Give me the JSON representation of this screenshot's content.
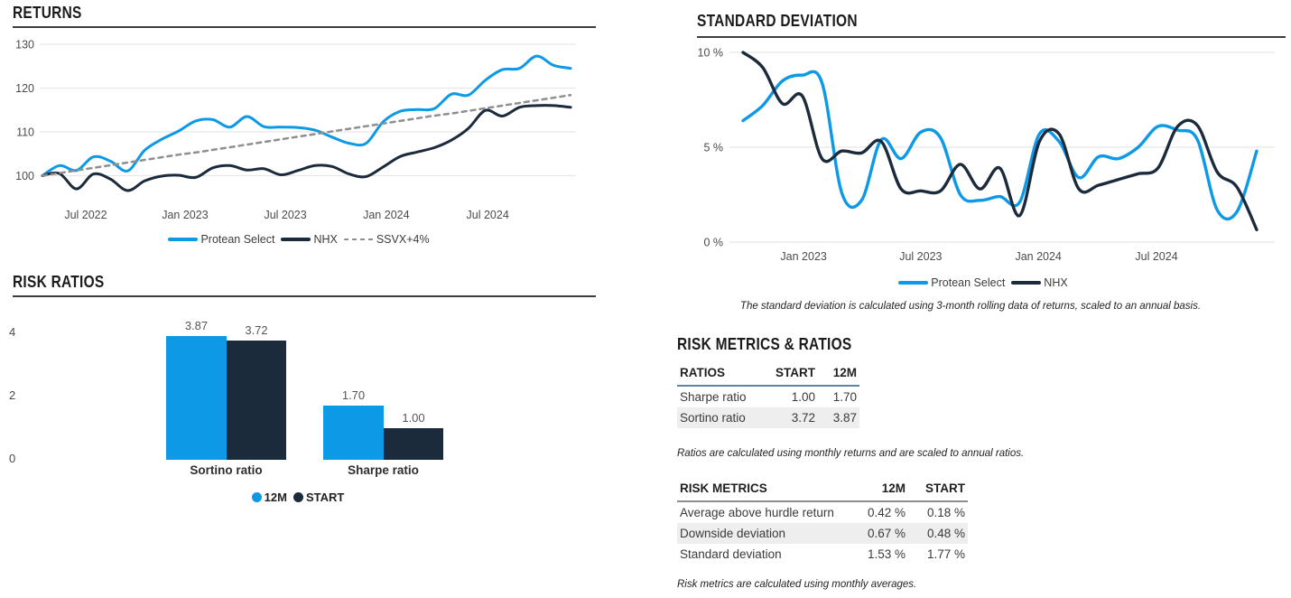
{
  "colors": {
    "accent_blue": "#0d99e6",
    "navy": "#1c2b3c",
    "dash_gray": "#8f8f8f",
    "grid": "#e8e8e8",
    "rule": "#3d3d3d",
    "stripe": "#eeeeee",
    "table1_underline": "#5d87a6",
    "table2_underline": "#8f8f8f"
  },
  "panels": {
    "returns": {
      "title": "RETURNS"
    },
    "risk_ratios": {
      "title": "RISK RATIOS"
    },
    "std_dev": {
      "title": "STANDARD DEVIATION",
      "footnote": "The standard deviation is calculated using 3-month rolling data of returns, scaled to an annual basis."
    },
    "risk_metrics": {
      "title": "RISK METRICS & RATIOS",
      "ratios_footnote": "Ratios are calculated using monthly returns and are scaled to annual ratios.",
      "metrics_footnote": "Risk metrics are calculated using monthly averages."
    }
  },
  "chart_data": [
    {
      "id": "returns",
      "type": "line",
      "title": "RETURNS",
      "x_range": [
        "May 2022",
        "Dec 2024"
      ],
      "x_ticks": [
        {
          "label": "Jul 2022",
          "pos": 0.082
        },
        {
          "label": "Jan 2023",
          "pos": 0.27
        },
        {
          "label": "Jul 2023",
          "pos": 0.46
        },
        {
          "label": "Jan 2024",
          "pos": 0.651
        },
        {
          "label": "Jul 2024",
          "pos": 0.843
        }
      ],
      "y_ticks": [
        {
          "label": "100",
          "value": 100
        },
        {
          "label": "110",
          "value": 110
        },
        {
          "label": "120",
          "value": 120
        },
        {
          "label": "130",
          "value": 130
        }
      ],
      "ylim": [
        94,
        131
      ],
      "grid": true,
      "legend_position": "bottom",
      "series": [
        {
          "name": "Protean Select",
          "color": "#0d99e6",
          "dash": false,
          "values": [
            100,
            102.3,
            101.2,
            104.3,
            103.3,
            101.1,
            105.8,
            108.3,
            110.2,
            112.5,
            112.8,
            111.1,
            113.5,
            111.2,
            111.1,
            111.0,
            110.4,
            108.8,
            107.4,
            107.4,
            112.3,
            114.7,
            115.1,
            115.3,
            118.6,
            118.4,
            121.8,
            124.2,
            124.5,
            127.3,
            125.2,
            124.5
          ]
        },
        {
          "name": "NHX",
          "color": "#1c2b3c",
          "dash": false,
          "values": [
            100,
            100.5,
            97.0,
            100.4,
            99.2,
            96.6,
            98.8,
            99.9,
            100.1,
            99.6,
            101.8,
            102.3,
            101.3,
            101.6,
            100.2,
            101.2,
            102.3,
            102.1,
            100.4,
            99.8,
            102.0,
            104.4,
            105.4,
            106.4,
            108.1,
            110.8,
            114.9,
            113.6,
            115.6,
            116.0,
            116.0,
            115.6
          ]
        },
        {
          "name": "SSVX+4%",
          "color": "#8f8f8f",
          "dash": true,
          "values": [
            100,
            100.6,
            101.2,
            101.8,
            102.4,
            103.0,
            103.6,
            104.2,
            104.8,
            105.3,
            105.9,
            106.5,
            107.1,
            107.7,
            108.3,
            108.9,
            109.5,
            110.1,
            110.7,
            111.3,
            111.9,
            112.5,
            113.1,
            113.7,
            114.2,
            114.8,
            115.4,
            116.0,
            116.6,
            117.2,
            117.8,
            118.4
          ]
        }
      ]
    },
    {
      "id": "std-dev",
      "type": "line",
      "title": "STANDARD DEVIATION",
      "x_range": [
        "Oct 2022",
        "Dec 2024"
      ],
      "x_ticks": [
        {
          "label": "Jan 2023",
          "pos": 0.118
        },
        {
          "label": "Jul 2023",
          "pos": 0.346
        },
        {
          "label": "Jan 2024",
          "pos": 0.575
        },
        {
          "label": "Jul 2024",
          "pos": 0.805
        }
      ],
      "y_ticks": [
        {
          "label": "0 %",
          "value": 0
        },
        {
          "label": "5 %",
          "value": 5
        },
        {
          "label": "10 %",
          "value": 10
        }
      ],
      "ylim": [
        0,
        10
      ],
      "grid": true,
      "legend_position": "bottom",
      "series": [
        {
          "name": "Protean Select",
          "color": "#0d99e6",
          "dash": false,
          "values": [
            6.4,
            7.2,
            8.5,
            8.8,
            8.4,
            2.6,
            2.2,
            5.4,
            4.4,
            5.8,
            5.5,
            2.5,
            2.2,
            2.4,
            2.1,
            5.7,
            5.3,
            3.4,
            4.5,
            4.4,
            5.0,
            6.1,
            5.9,
            5.4,
            1.7,
            1.6,
            4.8
          ]
        },
        {
          "name": "NHX",
          "color": "#1c2b3c",
          "dash": false,
          "values": [
            10.0,
            9.2,
            7.3,
            7.7,
            4.4,
            4.8,
            4.7,
            5.3,
            2.8,
            2.7,
            2.7,
            4.1,
            2.8,
            3.9,
            1.4,
            5.3,
            5.7,
            2.8,
            3.0,
            3.3,
            3.6,
            3.9,
            6.1,
            6.15,
            3.7,
            2.9,
            0.65
          ]
        }
      ]
    },
    {
      "id": "risk-ratios",
      "type": "bar",
      "title": "RISK RATIOS",
      "categories": [
        "Sortino ratio",
        "Sharpe ratio"
      ],
      "series": [
        {
          "name": "12M",
          "color": "#0d99e6",
          "values": [
            3.87,
            1.7
          ]
        },
        {
          "name": "START",
          "color": "#1c2b3c",
          "values": [
            3.72,
            1.0
          ]
        }
      ],
      "value_labels": [
        "3.87",
        "3.72",
        "1.70",
        "1.00"
      ],
      "y_ticks": [
        "4",
        "2",
        "0"
      ],
      "ylim": [
        0,
        4
      ],
      "legend_position": "bottom"
    }
  ],
  "tables": {
    "ratios": {
      "headers": [
        "RATIOS",
        "START",
        "12M"
      ],
      "rows": [
        {
          "name": "Sharpe ratio",
          "start": "1.00",
          "m12": "1.70"
        },
        {
          "name": "Sortino ratio",
          "start": "3.72",
          "m12": "3.87"
        }
      ]
    },
    "risk_metrics": {
      "headers": [
        "RISK METRICS",
        "12M",
        "START"
      ],
      "rows": [
        {
          "name": "Average above hurdle return",
          "m12": "0.42 %",
          "start": "0.18 %"
        },
        {
          "name": "Downside deviation",
          "m12": "0.67 %",
          "start": "0.48 %"
        },
        {
          "name": "Standard deviation",
          "m12": "1.53 %",
          "start": "1.77 %"
        }
      ]
    }
  }
}
